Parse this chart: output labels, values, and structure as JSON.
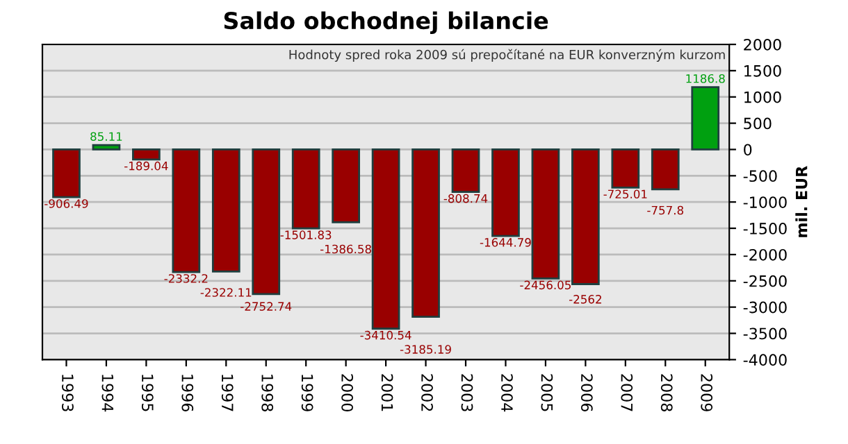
{
  "chart_data": {
    "type": "bar",
    "title": "Saldo obchodnej bilancie",
    "ylabel": "mil. EUR",
    "annotations": [
      "Hodnoty spred roka 2009 sú prepočítané na EUR konverzným kurzom"
    ],
    "categories": [
      "1993",
      "1994",
      "1995",
      "1996",
      "1997",
      "1998",
      "1999",
      "2000",
      "2001",
      "2002",
      "2003",
      "2004",
      "2005",
      "2006",
      "2007",
      "2008",
      "2009"
    ],
    "values": [
      -906.49,
      85.11,
      -189.04,
      -2332.2,
      -2322.11,
      -2752.74,
      -1501.83,
      -1386.58,
      -3410.54,
      -3185.19,
      -808.74,
      -1644.79,
      -2456.05,
      -2562,
      -725.01,
      -757.8,
      1186.8
    ],
    "colors": [
      "#990000",
      "#00a010",
      "#990000",
      "#990000",
      "#990000",
      "#990000",
      "#990000",
      "#990000",
      "#990000",
      "#990000",
      "#990000",
      "#990000",
      "#990000",
      "#990000",
      "#990000",
      "#990000",
      "#00a010"
    ],
    "ylim": [
      -4000,
      2000
    ],
    "yticks": [
      -4000,
      -3500,
      -3000,
      -2500,
      -2000,
      -1500,
      -1000,
      -500,
      0,
      500,
      1000,
      1500,
      2000
    ],
    "grid": "y",
    "data_labels": true
  }
}
